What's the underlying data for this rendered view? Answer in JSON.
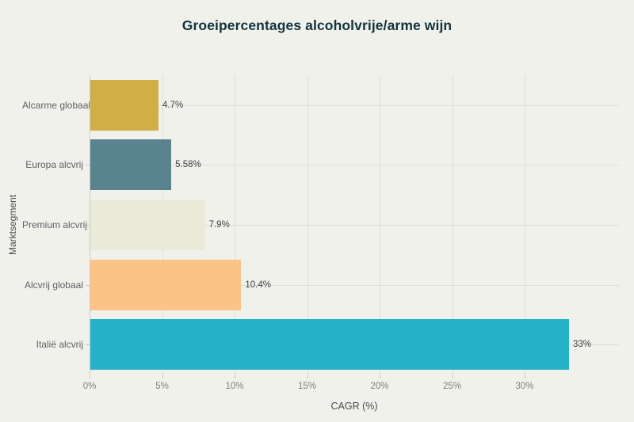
{
  "title": "Groeipercentages alcoholvrije/arme wijn",
  "chart_data": {
    "type": "bar",
    "orientation": "horizontal",
    "title": "Groeipercentages alcoholvrije/arme wijn",
    "xlabel": "CAGR (%)",
    "ylabel": "Marktsegment",
    "categories": [
      "Alcarme globaal",
      "Europa alcvrij",
      "Premium alcvrij",
      "Alcvrij globaal",
      "Italië alcvrij"
    ],
    "values": [
      4.7,
      5.58,
      7.9,
      10.4,
      33
    ],
    "value_labels": [
      "4.7%",
      "5.58%",
      "7.9%",
      "10.4%",
      "33%"
    ],
    "bar_colors": [
      "#d1ae47",
      "#5a8390",
      "#ebead8",
      "#fcc286",
      "#25b2c8"
    ],
    "xlim": [
      0,
      36.5
    ],
    "xticks": [
      0,
      5,
      10,
      15,
      20,
      25,
      30
    ],
    "xtick_labels": [
      "0%",
      "5%",
      "10%",
      "15%",
      "20%",
      "25%",
      "30%"
    ],
    "grid": true,
    "legend": false
  },
  "colors": {
    "background": "#f1f1ec",
    "grid": "#deded6",
    "axis": "#c9c9c1",
    "title_text": "#14323c",
    "tick_text": "#80817d",
    "category_text": "#5e5f63",
    "value_text": "#3e3f43"
  }
}
